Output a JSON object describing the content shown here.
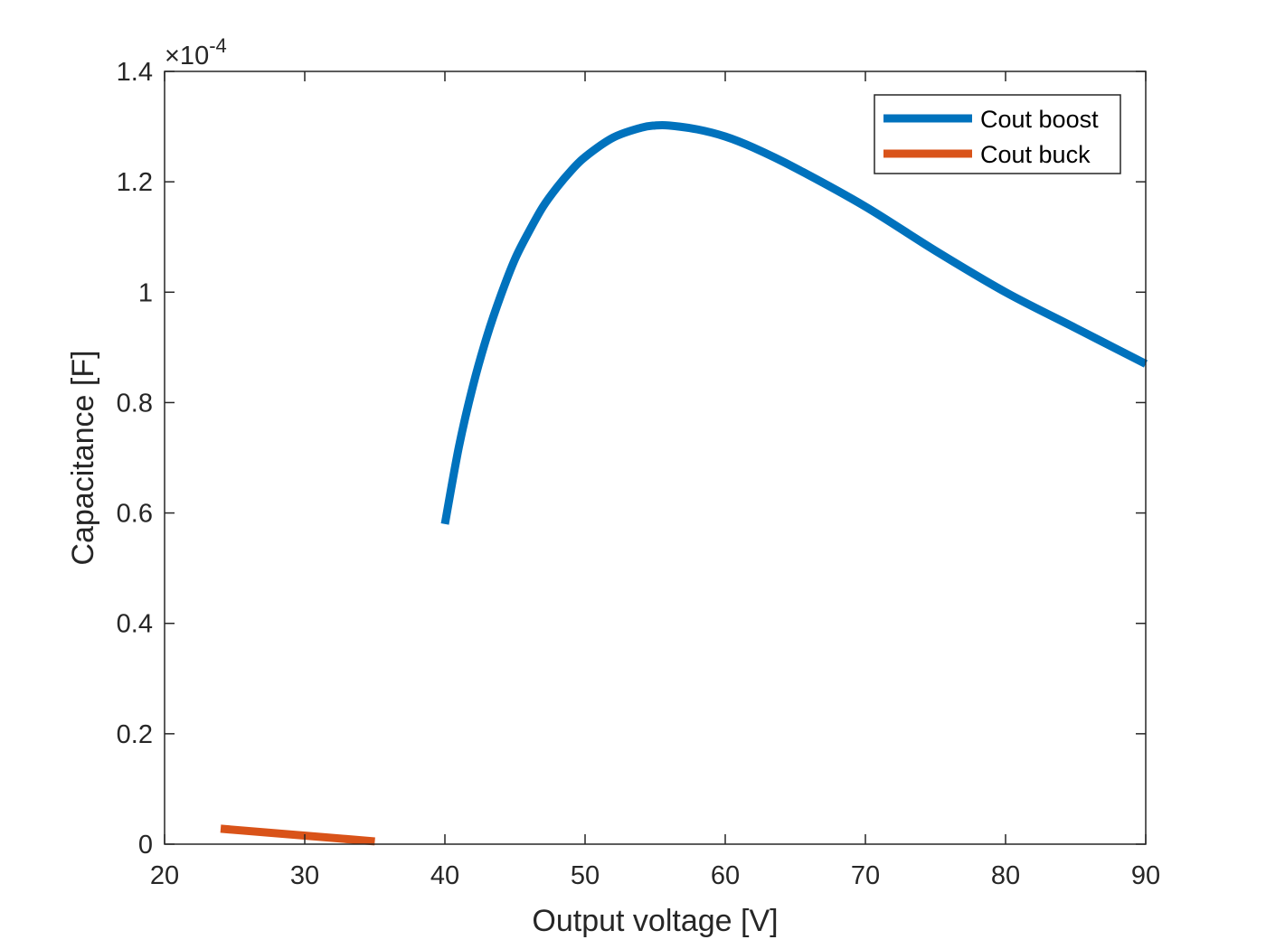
{
  "chart_data": {
    "type": "line",
    "xlabel": "Output voltage [V]",
    "ylabel": "Capacitance [F]",
    "xlim": [
      20,
      90
    ],
    "ylim": [
      0,
      1.4
    ],
    "y_exponent_label": "×10",
    "y_exponent_power": "-4",
    "x_ticks": [
      "20",
      "30",
      "40",
      "50",
      "60",
      "70",
      "80",
      "90"
    ],
    "y_ticks": [
      "0",
      "0.2",
      "0.4",
      "0.6",
      "0.8",
      "1",
      "1.2",
      "1.4"
    ],
    "grid": false,
    "box": true,
    "legend_position": "top-right",
    "series": [
      {
        "name": "Cout boost",
        "color": "#0072BD",
        "x": [
          40,
          41,
          42,
          43,
          44,
          45,
          46,
          47,
          48,
          49,
          50,
          52,
          54,
          55,
          56,
          58,
          60,
          62,
          65,
          70,
          75,
          80,
          85,
          90
        ],
        "y": [
          0.58,
          0.72,
          0.83,
          0.92,
          0.995,
          1.06,
          1.11,
          1.155,
          1.19,
          1.22,
          1.245,
          1.28,
          1.298,
          1.302,
          1.302,
          1.295,
          1.282,
          1.262,
          1.225,
          1.155,
          1.075,
          1.0,
          0.935,
          0.87
        ]
      },
      {
        "name": "Cout buck",
        "color": "#D95319",
        "x": [
          24,
          35
        ],
        "y": [
          0.028,
          0.005
        ]
      }
    ]
  }
}
